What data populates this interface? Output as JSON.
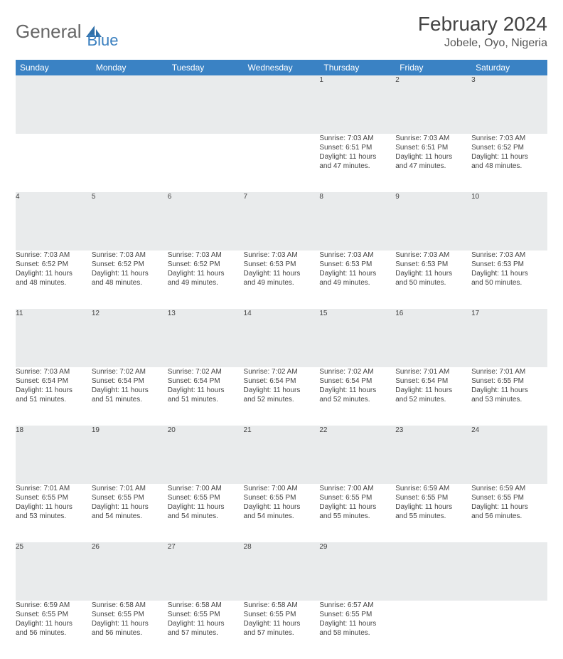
{
  "logo": {
    "text1": "General",
    "text2": "Blue"
  },
  "title": "February 2024",
  "location": "Jobele, Oyo, Nigeria",
  "colors": {
    "header_bg": "#3a82c4",
    "header_text": "#ffffff",
    "daynum_bg": "#e9ebec",
    "daynum_border": "#3a6f9f",
    "text": "#444444",
    "logo_accent": "#3a7fbf"
  },
  "day_headers": [
    "Sunday",
    "Monday",
    "Tuesday",
    "Wednesday",
    "Thursday",
    "Friday",
    "Saturday"
  ],
  "weeks": [
    {
      "nums": [
        "",
        "",
        "",
        "",
        "1",
        "2",
        "3"
      ],
      "cells": [
        {
          "sunrise": "",
          "sunset": "",
          "daylight1": "",
          "daylight2": ""
        },
        {
          "sunrise": "",
          "sunset": "",
          "daylight1": "",
          "daylight2": ""
        },
        {
          "sunrise": "",
          "sunset": "",
          "daylight1": "",
          "daylight2": ""
        },
        {
          "sunrise": "",
          "sunset": "",
          "daylight1": "",
          "daylight2": ""
        },
        {
          "sunrise": "Sunrise: 7:03 AM",
          "sunset": "Sunset: 6:51 PM",
          "daylight1": "Daylight: 11 hours",
          "daylight2": "and 47 minutes."
        },
        {
          "sunrise": "Sunrise: 7:03 AM",
          "sunset": "Sunset: 6:51 PM",
          "daylight1": "Daylight: 11 hours",
          "daylight2": "and 47 minutes."
        },
        {
          "sunrise": "Sunrise: 7:03 AM",
          "sunset": "Sunset: 6:52 PM",
          "daylight1": "Daylight: 11 hours",
          "daylight2": "and 48 minutes."
        }
      ]
    },
    {
      "nums": [
        "4",
        "5",
        "6",
        "7",
        "8",
        "9",
        "10"
      ],
      "cells": [
        {
          "sunrise": "Sunrise: 7:03 AM",
          "sunset": "Sunset: 6:52 PM",
          "daylight1": "Daylight: 11 hours",
          "daylight2": "and 48 minutes."
        },
        {
          "sunrise": "Sunrise: 7:03 AM",
          "sunset": "Sunset: 6:52 PM",
          "daylight1": "Daylight: 11 hours",
          "daylight2": "and 48 minutes."
        },
        {
          "sunrise": "Sunrise: 7:03 AM",
          "sunset": "Sunset: 6:52 PM",
          "daylight1": "Daylight: 11 hours",
          "daylight2": "and 49 minutes."
        },
        {
          "sunrise": "Sunrise: 7:03 AM",
          "sunset": "Sunset: 6:53 PM",
          "daylight1": "Daylight: 11 hours",
          "daylight2": "and 49 minutes."
        },
        {
          "sunrise": "Sunrise: 7:03 AM",
          "sunset": "Sunset: 6:53 PM",
          "daylight1": "Daylight: 11 hours",
          "daylight2": "and 49 minutes."
        },
        {
          "sunrise": "Sunrise: 7:03 AM",
          "sunset": "Sunset: 6:53 PM",
          "daylight1": "Daylight: 11 hours",
          "daylight2": "and 50 minutes."
        },
        {
          "sunrise": "Sunrise: 7:03 AM",
          "sunset": "Sunset: 6:53 PM",
          "daylight1": "Daylight: 11 hours",
          "daylight2": "and 50 minutes."
        }
      ]
    },
    {
      "nums": [
        "11",
        "12",
        "13",
        "14",
        "15",
        "16",
        "17"
      ],
      "cells": [
        {
          "sunrise": "Sunrise: 7:03 AM",
          "sunset": "Sunset: 6:54 PM",
          "daylight1": "Daylight: 11 hours",
          "daylight2": "and 51 minutes."
        },
        {
          "sunrise": "Sunrise: 7:02 AM",
          "sunset": "Sunset: 6:54 PM",
          "daylight1": "Daylight: 11 hours",
          "daylight2": "and 51 minutes."
        },
        {
          "sunrise": "Sunrise: 7:02 AM",
          "sunset": "Sunset: 6:54 PM",
          "daylight1": "Daylight: 11 hours",
          "daylight2": "and 51 minutes."
        },
        {
          "sunrise": "Sunrise: 7:02 AM",
          "sunset": "Sunset: 6:54 PM",
          "daylight1": "Daylight: 11 hours",
          "daylight2": "and 52 minutes."
        },
        {
          "sunrise": "Sunrise: 7:02 AM",
          "sunset": "Sunset: 6:54 PM",
          "daylight1": "Daylight: 11 hours",
          "daylight2": "and 52 minutes."
        },
        {
          "sunrise": "Sunrise: 7:01 AM",
          "sunset": "Sunset: 6:54 PM",
          "daylight1": "Daylight: 11 hours",
          "daylight2": "and 52 minutes."
        },
        {
          "sunrise": "Sunrise: 7:01 AM",
          "sunset": "Sunset: 6:55 PM",
          "daylight1": "Daylight: 11 hours",
          "daylight2": "and 53 minutes."
        }
      ]
    },
    {
      "nums": [
        "18",
        "19",
        "20",
        "21",
        "22",
        "23",
        "24"
      ],
      "cells": [
        {
          "sunrise": "Sunrise: 7:01 AM",
          "sunset": "Sunset: 6:55 PM",
          "daylight1": "Daylight: 11 hours",
          "daylight2": "and 53 minutes."
        },
        {
          "sunrise": "Sunrise: 7:01 AM",
          "sunset": "Sunset: 6:55 PM",
          "daylight1": "Daylight: 11 hours",
          "daylight2": "and 54 minutes."
        },
        {
          "sunrise": "Sunrise: 7:00 AM",
          "sunset": "Sunset: 6:55 PM",
          "daylight1": "Daylight: 11 hours",
          "daylight2": "and 54 minutes."
        },
        {
          "sunrise": "Sunrise: 7:00 AM",
          "sunset": "Sunset: 6:55 PM",
          "daylight1": "Daylight: 11 hours",
          "daylight2": "and 54 minutes."
        },
        {
          "sunrise": "Sunrise: 7:00 AM",
          "sunset": "Sunset: 6:55 PM",
          "daylight1": "Daylight: 11 hours",
          "daylight2": "and 55 minutes."
        },
        {
          "sunrise": "Sunrise: 6:59 AM",
          "sunset": "Sunset: 6:55 PM",
          "daylight1": "Daylight: 11 hours",
          "daylight2": "and 55 minutes."
        },
        {
          "sunrise": "Sunrise: 6:59 AM",
          "sunset": "Sunset: 6:55 PM",
          "daylight1": "Daylight: 11 hours",
          "daylight2": "and 56 minutes."
        }
      ]
    },
    {
      "nums": [
        "25",
        "26",
        "27",
        "28",
        "29",
        "",
        ""
      ],
      "cells": [
        {
          "sunrise": "Sunrise: 6:59 AM",
          "sunset": "Sunset: 6:55 PM",
          "daylight1": "Daylight: 11 hours",
          "daylight2": "and 56 minutes."
        },
        {
          "sunrise": "Sunrise: 6:58 AM",
          "sunset": "Sunset: 6:55 PM",
          "daylight1": "Daylight: 11 hours",
          "daylight2": "and 56 minutes."
        },
        {
          "sunrise": "Sunrise: 6:58 AM",
          "sunset": "Sunset: 6:55 PM",
          "daylight1": "Daylight: 11 hours",
          "daylight2": "and 57 minutes."
        },
        {
          "sunrise": "Sunrise: 6:58 AM",
          "sunset": "Sunset: 6:55 PM",
          "daylight1": "Daylight: 11 hours",
          "daylight2": "and 57 minutes."
        },
        {
          "sunrise": "Sunrise: 6:57 AM",
          "sunset": "Sunset: 6:55 PM",
          "daylight1": "Daylight: 11 hours",
          "daylight2": "and 58 minutes."
        },
        {
          "sunrise": "",
          "sunset": "",
          "daylight1": "",
          "daylight2": ""
        },
        {
          "sunrise": "",
          "sunset": "",
          "daylight1": "",
          "daylight2": ""
        }
      ]
    }
  ]
}
